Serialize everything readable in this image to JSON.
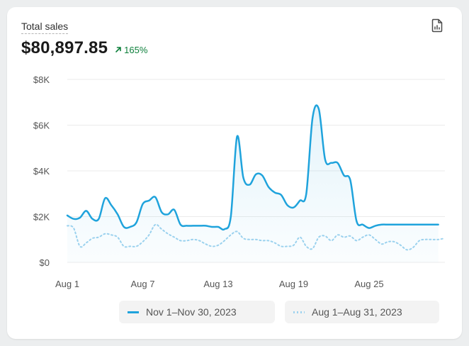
{
  "card": {
    "title": "Total sales",
    "total": "$80,897.85",
    "change": "165%",
    "report_icon": "report-icon",
    "arrow_icon": "arrow-up-right-icon"
  },
  "colors": {
    "current": "#1fa3dc",
    "previous": "#9fd3ef",
    "change": "#0c7f3a"
  },
  "chart_data": {
    "type": "line",
    "y_ticks": [
      "$0",
      "$2K",
      "$4K",
      "$6K",
      "$8K"
    ],
    "ylim": [
      0,
      8000
    ],
    "x_tick_labels": [
      "Aug 1",
      "Aug 7",
      "Aug 13",
      "Aug 19",
      "Aug 25"
    ],
    "x_tick_days": [
      1,
      7,
      13,
      19,
      25
    ],
    "grid": true,
    "legend_position": "bottom",
    "series": [
      {
        "name": "Nov 1–Nov 30, 2023",
        "style": "solid",
        "x": [
          1,
          1.5,
          2,
          2.5,
          3,
          3.5,
          4,
          4.5,
          5,
          5.5,
          6,
          6.5,
          7,
          7.5,
          8,
          8.5,
          9,
          9.5,
          10,
          10.5,
          11,
          11.5,
          12,
          12.5,
          13,
          13.5,
          14,
          14.5,
          15,
          15.5,
          16,
          16.5,
          17,
          17.5,
          18,
          18.5,
          19,
          19.5,
          20,
          20.5,
          21,
          21.5,
          22,
          22.5,
          23,
          23.5,
          24,
          24.5,
          25,
          25.5,
          26,
          26.5,
          27,
          27.5,
          28,
          28.5,
          29,
          29.5,
          30,
          30.5
        ],
        "values": [
          2050,
          1900,
          1950,
          2250,
          1900,
          1900,
          2800,
          2500,
          2100,
          1550,
          1550,
          1750,
          2550,
          2700,
          2850,
          2200,
          2100,
          2300,
          1650,
          1600,
          1600,
          1600,
          1600,
          1550,
          1550,
          1450,
          2000,
          5500,
          3700,
          3400,
          3850,
          3800,
          3300,
          3050,
          2950,
          2500,
          2400,
          2700,
          3000,
          6300,
          6700,
          4500,
          4350,
          4350,
          3800,
          3600,
          1800,
          1650,
          1500,
          1600,
          1650,
          1650,
          1650,
          1650,
          1650,
          1650,
          1650,
          1650,
          1650,
          1650
        ]
      },
      {
        "name": "Aug 1–Aug 31, 2023",
        "style": "dotted",
        "x": [
          1,
          1.5,
          2,
          2.5,
          3,
          3.5,
          4,
          4.5,
          5,
          5.5,
          6,
          6.5,
          7,
          7.5,
          8,
          8.5,
          9,
          9.5,
          10,
          10.5,
          11,
          11.5,
          12,
          12.5,
          13,
          13.5,
          14,
          14.5,
          15,
          15.5,
          16,
          16.5,
          17,
          17.5,
          18,
          18.5,
          19,
          19.5,
          20,
          20.5,
          21,
          21.5,
          22,
          22.5,
          23,
          23.5,
          24,
          24.5,
          25,
          25.5,
          26,
          26.5,
          27,
          27.5,
          28,
          28.5,
          29,
          29.5,
          30,
          30.5,
          31
        ],
        "values": [
          1600,
          1500,
          700,
          850,
          1050,
          1100,
          1250,
          1200,
          1100,
          700,
          700,
          700,
          900,
          1200,
          1650,
          1450,
          1250,
          1100,
          950,
          950,
          1000,
          950,
          800,
          700,
          750,
          950,
          1200,
          1350,
          1050,
          1000,
          1000,
          950,
          950,
          850,
          700,
          700,
          750,
          1100,
          700,
          600,
          1100,
          1150,
          950,
          1200,
          1100,
          1150,
          950,
          1100,
          1200,
          1000,
          800,
          900,
          900,
          750,
          550,
          650,
          950,
          1000,
          1000,
          1000,
          1050
        ]
      }
    ]
  }
}
